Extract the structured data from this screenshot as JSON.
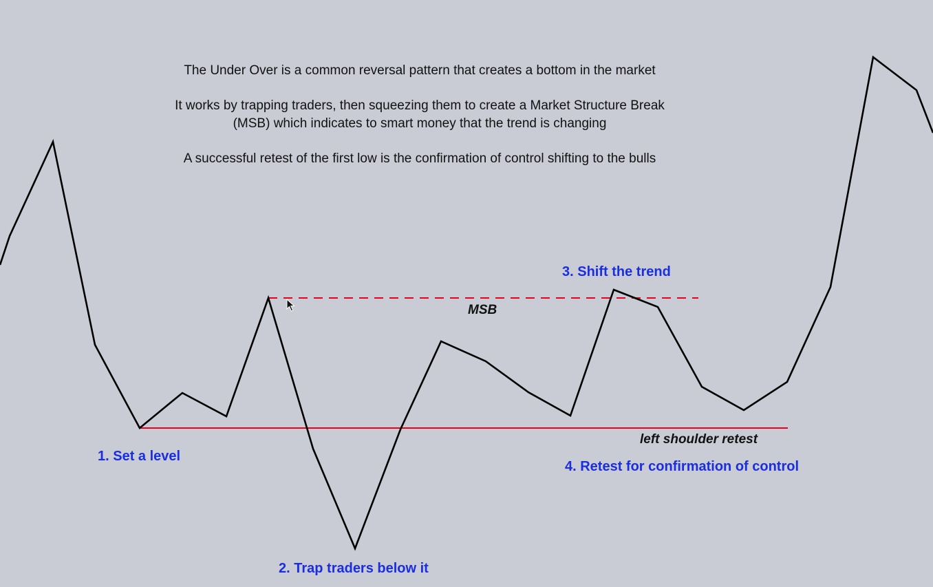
{
  "description": {
    "line1": "The Under Over is a common reversal pattern that creates a bottom in the market",
    "line2": "It works by trapping traders, then squeezing them to create a Market Structure Break\n(MSB) which indicates to smart money that the trend is changing",
    "line3": "A successful retest of the first low is the confirmation of control shifting to the bulls"
  },
  "steps": {
    "set_level": "1. Set a level",
    "trap": "2. Trap traders below it",
    "shift": "3. Shift the trend",
    "retest": "4. Retest for confirmation of control"
  },
  "labels": {
    "msb": "MSB",
    "left_shoulder": "left shoulder retest"
  },
  "colors": {
    "background": "#c9ccd4",
    "price_line": "#000000",
    "level_line": "#e8001c",
    "step_text": "#1a2ee0",
    "body_text": "#111111"
  }
}
